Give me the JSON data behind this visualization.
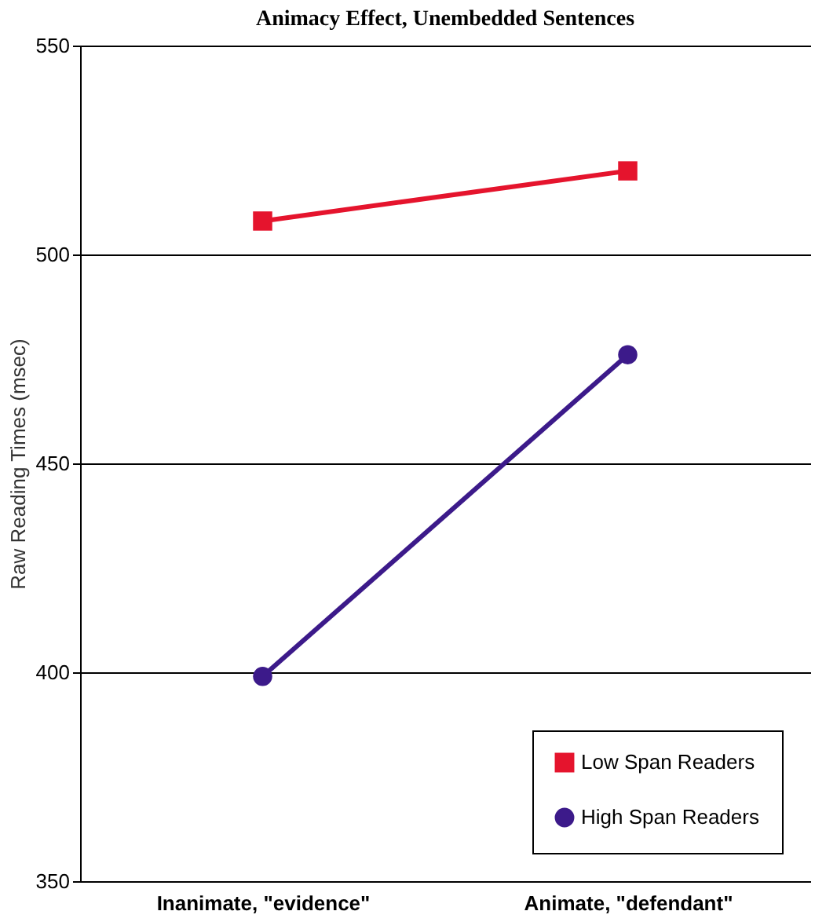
{
  "chart_data": {
    "type": "line",
    "title": "Animacy Effect, Unembedded Sentences",
    "ylabel": "Raw Reading Times (msec)",
    "categories": [
      "Inanimate, \"evidence\"",
      "Animate, \"defendant\""
    ],
    "series": [
      {
        "name": "Low Span Readers",
        "color": "#e5142d",
        "marker": "square",
        "values": [
          508,
          520
        ]
      },
      {
        "name": "High Span Readers",
        "color": "#3c1a8a",
        "marker": "circle",
        "values": [
          399,
          476
        ]
      }
    ],
    "ylim": [
      350,
      550
    ],
    "yticks": [
      350,
      400,
      450,
      500,
      550
    ],
    "grid": "y",
    "legend": "bottom right",
    "line_style": "solid"
  }
}
